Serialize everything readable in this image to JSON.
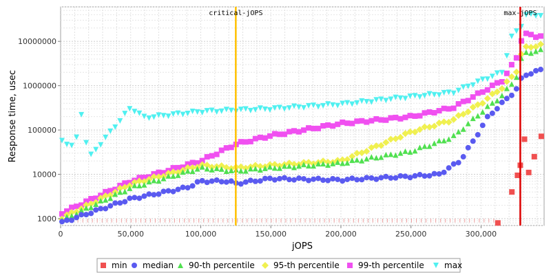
{
  "chart_data": {
    "type": "scatter",
    "title": "",
    "xlabel": "jOPS",
    "ylabel": "Response time, usec",
    "xlim": [
      0,
      345000
    ],
    "ylim": [
      700,
      60000000
    ],
    "y_scale": "log",
    "grid": true,
    "legend_position": "bottom",
    "x_ticks": [
      0,
      50000,
      100000,
      150000,
      200000,
      250000,
      300000
    ],
    "x_tick_labels": [
      "0",
      "50,000",
      "100,000",
      "150,000",
      "200,000",
      "250,000",
      "300,000"
    ],
    "y_ticks": [
      1000,
      10000,
      100000,
      1000000,
      10000000
    ],
    "y_tick_labels": [
      "1000",
      "10000",
      "100000",
      "1000000",
      "10000000"
    ],
    "reference_lines": [
      {
        "label": "critical-jOPS",
        "x": 125000,
        "color": "#ffc000"
      },
      {
        "label": "max-jOPS",
        "x": 328000,
        "color": "#dd0000"
      }
    ],
    "series": [
      {
        "name": "min",
        "color": "#f05050",
        "marker": "square",
        "x": [
          312000,
          322000,
          326000,
          328000,
          331000,
          334000,
          338000,
          343000
        ],
        "y": [
          800,
          4000,
          9500,
          16000,
          62000,
          11000,
          25000,
          72000
        ]
      },
      {
        "name": "median",
        "color": "#5a5af0",
        "marker": "circle",
        "x": [
          0,
          50000,
          90000,
          100000,
          120000,
          125000,
          150000,
          200000,
          250000,
          270000,
          285000,
          295000,
          305000,
          315000,
          325000,
          330000,
          340000,
          345000
        ],
        "y": [
          800,
          2800,
          5000,
          7000,
          7000,
          6200,
          8000,
          7500,
          9000,
          10000,
          20000,
          60000,
          200000,
          400000,
          800000,
          1700000,
          2100000,
          2500000
        ]
      },
      {
        "name": "90-th percentile",
        "color": "#50e050",
        "marker": "triangle-up",
        "x": [
          0,
          50000,
          100000,
          125000,
          150000,
          200000,
          250000,
          280000,
          300000,
          315000,
          325000,
          330000,
          340000,
          345000
        ],
        "y": [
          900,
          5000,
          14000,
          12000,
          14000,
          18000,
          33000,
          70000,
          250000,
          600000,
          1500000,
          5500000,
          6000000,
          6500000
        ]
      },
      {
        "name": "95-th percentile",
        "color": "#f0f050",
        "marker": "diamond",
        "x": [
          0,
          50000,
          100000,
          125000,
          150000,
          200000,
          250000,
          280000,
          300000,
          315000,
          325000,
          330000,
          340000,
          345000
        ],
        "y": [
          1000,
          6000,
          16000,
          14000,
          16000,
          20000,
          90000,
          170000,
          400000,
          900000,
          2000000,
          7000000,
          8000000,
          8500000
        ]
      },
      {
        "name": "99-th percentile",
        "color": "#f050f0",
        "marker": "square",
        "x": [
          0,
          50000,
          100000,
          125000,
          150000,
          200000,
          250000,
          280000,
          300000,
          315000,
          325000,
          330000,
          340000,
          345000
        ],
        "y": [
          1300,
          7000,
          20000,
          48000,
          75000,
          140000,
          200000,
          320000,
          700000,
          1300000,
          4000000,
          15000000,
          13000000,
          13500000
        ]
      },
      {
        "name": "max",
        "color": "#50f0f0",
        "marker": "triangle-down",
        "x": [
          0,
          10000,
          15000,
          20000,
          50000,
          60000,
          100000,
          125000,
          150000,
          200000,
          250000,
          280000,
          300000,
          315000,
          322000,
          328000,
          332000,
          340000,
          345000
        ],
        "y": [
          60000,
          40000,
          250000,
          23000,
          320000,
          190000,
          260000,
          280000,
          300000,
          380000,
          560000,
          700000,
          1300000,
          2000000,
          13000000,
          20000000,
          40000000,
          38000000,
          42000000
        ]
      }
    ]
  }
}
